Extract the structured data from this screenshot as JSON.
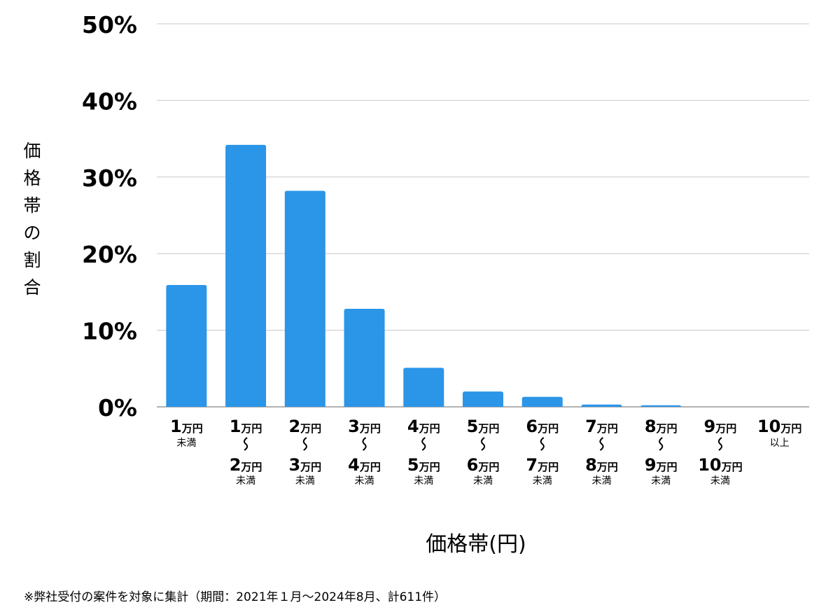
{
  "chart_data": {
    "type": "bar",
    "categories": [
      [
        "1万円",
        "未満"
      ],
      [
        "1万円",
        "〜",
        "2万円",
        "未満"
      ],
      [
        "2万円",
        "〜",
        "3万円",
        "未満"
      ],
      [
        "3万円",
        "〜",
        "4万円",
        "未満"
      ],
      [
        "4万円",
        "〜",
        "5万円",
        "未満"
      ],
      [
        "5万円",
        "〜",
        "6万円",
        "未満"
      ],
      [
        "6万円",
        "〜",
        "7万円",
        "未満"
      ],
      [
        "7万円",
        "〜",
        "8万円",
        "未満"
      ],
      [
        "8万円",
        "〜",
        "9万円",
        "未満"
      ],
      [
        "9万円",
        "〜",
        "10万円",
        "未満"
      ],
      [
        "10万円",
        "以上"
      ]
    ],
    "values": [
      15.9,
      34.2,
      28.2,
      12.8,
      5.1,
      2.0,
      1.3,
      0.3,
      0.2,
      0.0,
      0.0
    ],
    "ylim": [
      0,
      50
    ],
    "yticks": [
      "0%",
      "10%",
      "20%",
      "30%",
      "40%",
      "50%"
    ],
    "ylabel": "価格帯の割合",
    "xlabel": "価格帯(円)",
    "grid": true,
    "bar_color": "#2b95e8"
  },
  "footnote": "※弊社受付の案件を対象に集計（期間：2021年１月〜2024年8月、計611件）"
}
